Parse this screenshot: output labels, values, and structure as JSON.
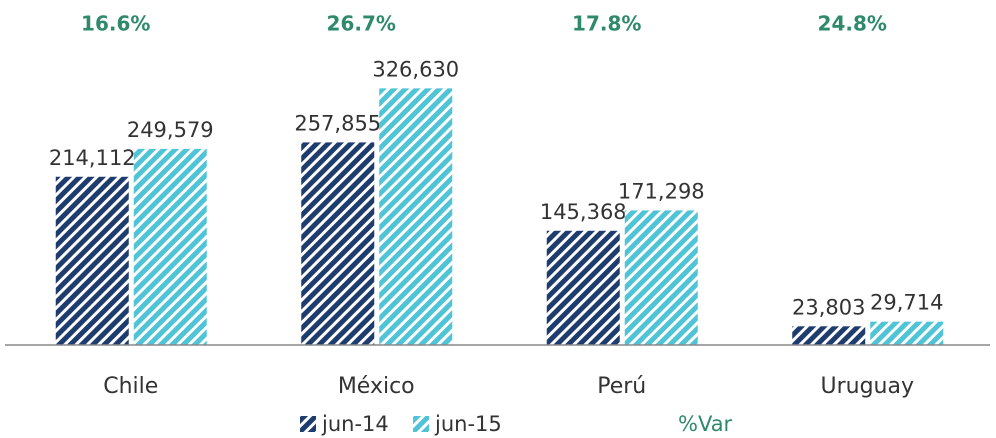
{
  "chart_data": {
    "type": "bar",
    "categories": [
      "Chile",
      "México",
      "Perú",
      "Uruguay"
    ],
    "series": [
      {
        "name": "jun-14",
        "color": "#1f3c6e",
        "values": [
          214112,
          257855,
          145368,
          23803
        ],
        "value_labels": [
          "214,112",
          "257,855",
          "145,368",
          "23,803"
        ]
      },
      {
        "name": "jun-15",
        "color": "#4fc4d6",
        "values": [
          249579,
          326630,
          171298,
          29714
        ],
        "value_labels": [
          "249,579",
          "326,630",
          "171,298",
          "29,714"
        ]
      }
    ],
    "var_series": {
      "name": "%Var",
      "color": "#2e8a6b",
      "values": [
        16.6,
        26.7,
        17.8,
        24.8
      ],
      "value_labels": [
        "16.6%",
        "26.7%",
        "17.8%",
        "24.8%"
      ]
    },
    "ylim": [
      0,
      350000
    ]
  }
}
